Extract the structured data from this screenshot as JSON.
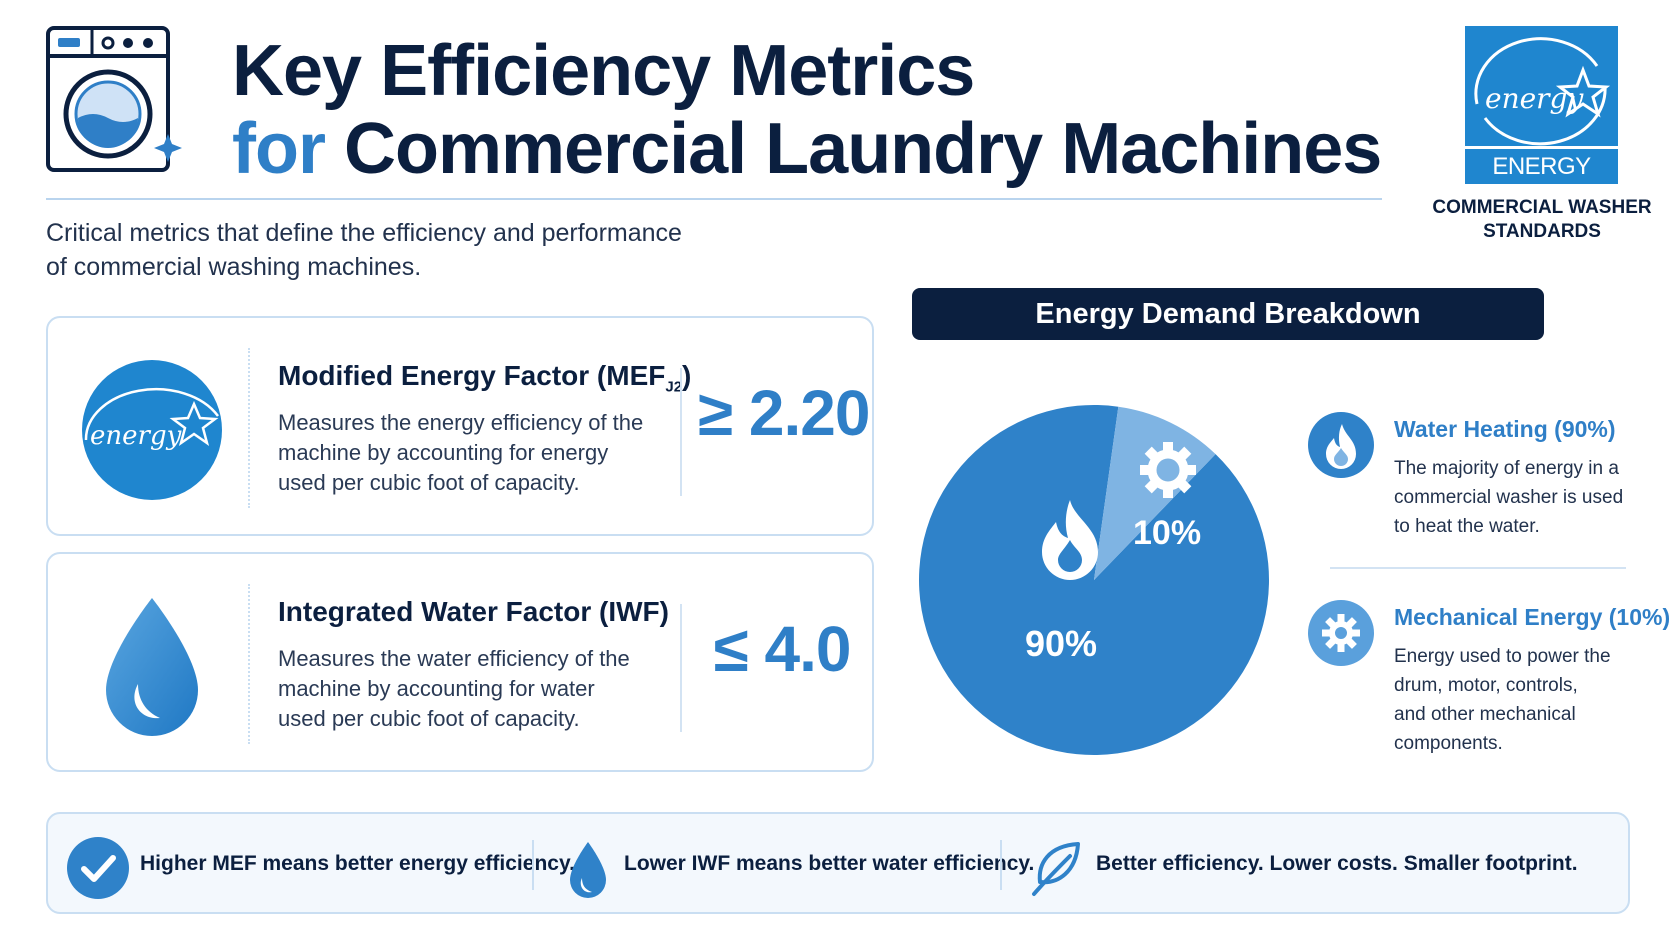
{
  "header": {
    "title_line1": "Key Efficiency Metrics",
    "title_line2_accent": "for",
    "title_line2_rest": "Commercial Laundry Machines",
    "subtitle_line1": "Critical metrics that define the efficiency and performance",
    "subtitle_line2": "of commercial washing machines."
  },
  "badge": {
    "logo_label": "ENERGY STAR",
    "caption_line1": "COMMERCIAL WASHER",
    "caption_line2": "STANDARDS"
  },
  "metrics": [
    {
      "name": "Modified Energy Factor (MEF",
      "name_sub": "J2",
      "name_close": ")",
      "desc_line1": "Measures the energy efficiency of the",
      "desc_line2": "machine by accounting for energy",
      "desc_line3": "used per cubic foot of capacity.",
      "value": "≥ 2.20"
    },
    {
      "name": "Integrated Water Factor (IWF)",
      "desc_line1": "Measures the water efficiency of the",
      "desc_line2": "machine by accounting for water",
      "desc_line3": "used per cubic foot of capacity.",
      "value": "≤ 4.0"
    }
  ],
  "breakdown": {
    "title": "Energy Demand Breakdown",
    "slices": [
      {
        "label": "90%",
        "value": 90,
        "color": "#2f82c9"
      },
      {
        "label": "10%",
        "value": 10,
        "color": "#7fb4e3"
      }
    ],
    "legend": [
      {
        "title": "Water Heating (90%)",
        "desc_line1": "The majority of energy in a",
        "desc_line2": "commercial washer is used",
        "desc_line3": "to heat the water.",
        "icon": "flame-icon"
      },
      {
        "title": "Mechanical Energy (10%)",
        "desc_line1": "Energy used to power the",
        "desc_line2": "drum, motor, controls,",
        "desc_line3": "and other mechanical",
        "desc_line4": "components.",
        "icon": "gear-icon"
      }
    ]
  },
  "tips": [
    {
      "text": "Higher MEF means better energy efficiency.",
      "icon": "checkmark-icon"
    },
    {
      "text": "Lower IWF means better water efficiency.",
      "icon": "water-drop-icon"
    },
    {
      "text": "Better efficiency. Lower costs. Smaller footprint.",
      "icon": "leaf-icon"
    }
  ],
  "colors": {
    "navy": "#0b1f3f",
    "accent_blue": "#2f7fc7",
    "light_blue": "#7fb4e3"
  }
}
